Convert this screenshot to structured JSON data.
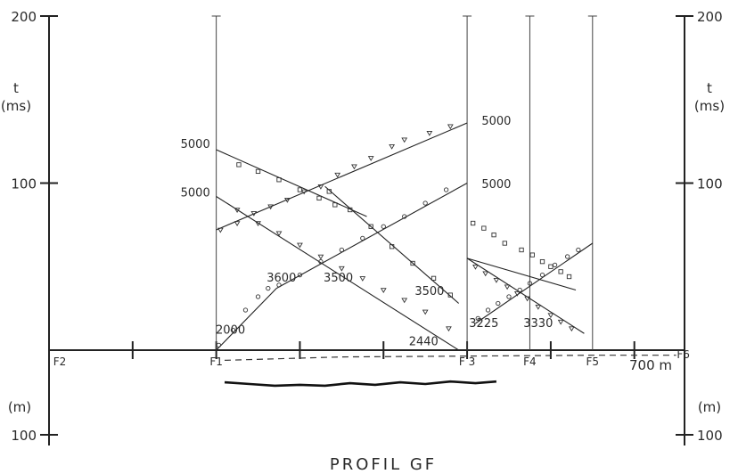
{
  "chart_data": {
    "type": "line",
    "title": "PROFIL GF",
    "ylabel_top": "t\n(ms)",
    "ylabel_bottom": "(m)",
    "x_unit_label": "700 m",
    "y_ticks_top": [
      {
        "value": 200,
        "label": "200"
      },
      {
        "value": 100,
        "label": "100"
      }
    ],
    "y_ticks_bottom": [
      {
        "value": 100,
        "label": "100"
      }
    ],
    "xlim": [
      0,
      800
    ],
    "ylim": [
      0,
      200
    ],
    "shotpoints": [
      {
        "name": "F2",
        "x": 0,
        "label": "F2"
      },
      {
        "name": "F1",
        "x": 200,
        "label": "F1"
      },
      {
        "name": "F3",
        "x": 500,
        "label": "F 3"
      },
      {
        "name": "F4",
        "x": 575,
        "label": "F4"
      },
      {
        "name": "F5",
        "x": 650,
        "label": "F5"
      },
      {
        "name": "F6",
        "x": 750,
        "label": "F6"
      }
    ],
    "x_ticks": [
      100,
      200,
      300,
      400,
      500,
      600,
      700
    ],
    "velocity_labels": [
      {
        "text": "5000",
        "x": 175,
        "y": 121
      },
      {
        "text": "5000",
        "x": 175,
        "y": 92
      },
      {
        "text": "5000",
        "x": 535,
        "y": 135
      },
      {
        "text": "5000",
        "x": 535,
        "y": 97
      },
      {
        "text": "2000",
        "x": 217,
        "y": 10
      },
      {
        "text": "3600",
        "x": 278,
        "y": 41
      },
      {
        "text": "3500",
        "x": 346,
        "y": 41
      },
      {
        "text": "3500",
        "x": 455,
        "y": 33
      },
      {
        "text": "2440",
        "x": 448,
        "y": 3
      },
      {
        "text": "3225",
        "x": 520,
        "y": 14
      },
      {
        "text": "3330",
        "x": 585,
        "y": 14
      }
    ],
    "series": [
      {
        "marker": "square",
        "fit": [
          [
            200,
            120
          ],
          [
            380,
            80
          ]
        ],
        "points": [
          [
            227,
            111
          ],
          [
            250,
            107
          ],
          [
            275,
            102
          ],
          [
            300,
            96
          ],
          [
            323,
            91
          ],
          [
            342,
            87
          ]
        ]
      },
      {
        "marker": "triangle",
        "fit": [
          [
            200,
            72
          ],
          [
            500,
            136
          ]
        ],
        "points": [
          [
            205,
            72
          ],
          [
            225,
            76
          ],
          [
            245,
            82
          ],
          [
            265,
            86
          ],
          [
            285,
            90
          ],
          [
            305,
            95
          ],
          [
            325,
            98
          ],
          [
            345,
            105
          ],
          [
            365,
            110
          ],
          [
            385,
            115
          ],
          [
            410,
            122
          ],
          [
            425,
            126
          ],
          [
            455,
            130
          ],
          [
            480,
            134
          ]
        ]
      },
      {
        "marker": "triangle",
        "fit": [
          [
            200,
            92
          ],
          [
            490,
            0
          ]
        ],
        "points": [
          [
            225,
            84
          ],
          [
            250,
            76
          ],
          [
            275,
            70
          ],
          [
            300,
            63
          ],
          [
            325,
            56
          ],
          [
            350,
            49
          ],
          [
            375,
            43
          ],
          [
            400,
            36
          ],
          [
            425,
            30
          ],
          [
            450,
            23
          ],
          [
            478,
            13
          ]
        ]
      },
      {
        "marker": "square",
        "fit": [
          [
            330,
            98
          ],
          [
            490,
            28
          ]
        ],
        "points": [
          [
            335,
            95
          ],
          [
            360,
            84
          ],
          [
            385,
            74
          ],
          [
            410,
            62
          ],
          [
            435,
            52
          ],
          [
            460,
            43
          ],
          [
            480,
            33
          ]
        ]
      },
      {
        "marker": "circle",
        "fit": [
          [
            200,
            0
          ],
          [
            272,
            37
          ]
        ],
        "points": [
          [
            203,
            3
          ],
          [
            220,
            12
          ],
          [
            235,
            24
          ],
          [
            250,
            32
          ],
          [
            262,
            37
          ]
        ]
      },
      {
        "marker": "circle",
        "fit": [
          [
            272,
            37
          ],
          [
            500,
            100
          ]
        ],
        "points": [
          [
            275,
            39
          ],
          [
            300,
            45
          ],
          [
            325,
            53
          ],
          [
            350,
            60
          ],
          [
            375,
            67
          ],
          [
            400,
            74
          ],
          [
            425,
            80
          ],
          [
            450,
            88
          ],
          [
            475,
            96
          ]
        ]
      },
      {
        "marker": "circle",
        "fit": [
          [
            500,
            110
          ],
          [
            500,
            110
          ]
        ],
        "points": []
      },
      {
        "marker": "square",
        "fit": [
          [
            500,
            55
          ],
          [
            630,
            36
          ]
        ],
        "points": [
          [
            507,
            76
          ],
          [
            520,
            73
          ],
          [
            532,
            69
          ],
          [
            545,
            64
          ],
          [
            565,
            60
          ],
          [
            578,
            57
          ],
          [
            590,
            53
          ],
          [
            600,
            50
          ],
          [
            612,
            47
          ],
          [
            622,
            44
          ]
        ]
      },
      {
        "marker": "triangle",
        "fit": [
          [
            500,
            55
          ],
          [
            640,
            10
          ]
        ],
        "points": [
          [
            510,
            50
          ],
          [
            522,
            46
          ],
          [
            535,
            42
          ],
          [
            548,
            38
          ],
          [
            560,
            34
          ],
          [
            572,
            31
          ],
          [
            585,
            26
          ],
          [
            600,
            21
          ],
          [
            612,
            17
          ],
          [
            625,
            13
          ]
        ]
      },
      {
        "marker": "circle",
        "fit": [
          [
            510,
            16
          ],
          [
            650,
            64
          ]
        ],
        "points": [
          [
            513,
            19
          ],
          [
            525,
            24
          ],
          [
            537,
            28
          ],
          [
            550,
            32
          ],
          [
            563,
            36
          ],
          [
            575,
            40
          ],
          [
            590,
            45
          ],
          [
            605,
            51
          ],
          [
            620,
            56
          ],
          [
            633,
            60
          ]
        ]
      }
    ],
    "section": {
      "dashed": [
        [
          210,
          -12
        ],
        [
          350,
          -8
        ],
        [
          500,
          -7
        ],
        [
          650,
          -6
        ],
        [
          750,
          -6
        ]
      ],
      "solid": [
        [
          210,
          -38
        ],
        [
          240,
          -40
        ],
        [
          270,
          -42
        ],
        [
          300,
          -41
        ],
        [
          330,
          -42
        ],
        [
          360,
          -39
        ],
        [
          390,
          -41
        ],
        [
          420,
          -38
        ],
        [
          450,
          -40
        ],
        [
          480,
          -37
        ],
        [
          510,
          -39
        ],
        [
          535,
          -37
        ]
      ]
    }
  }
}
